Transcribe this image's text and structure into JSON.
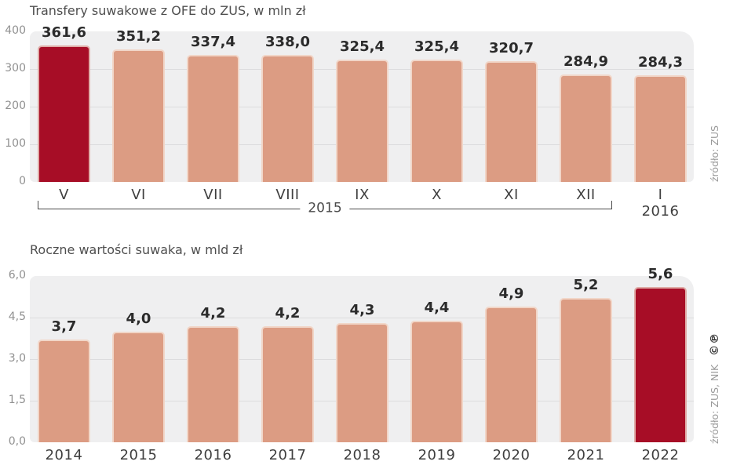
{
  "colors": {
    "accent_red": "#a70d26",
    "accent_border": "#dfaca7",
    "bar_fill": "#dc9c83",
    "bar_border": "#f1d6c8",
    "plot_background": "#efeff0",
    "gridline": "#dcdcde",
    "value_label": "#2b2b2b",
    "axis_tick": "#919191",
    "x_label": "#3f3f3f",
    "title": "#4f4f4f",
    "source": "#9a9a9a",
    "bracket": "#4a4a4a"
  },
  "chart_data": [
    {
      "type": "bar",
      "title": "Transfery suwakowe z OFE do ZUS, w mln zł",
      "categories": [
        "V",
        "VI",
        "VII",
        "VIII",
        "IX",
        "X",
        "XI",
        "XII",
        "I"
      ],
      "values": [
        361.6,
        351.2,
        337.4,
        338.0,
        325.4,
        325.4,
        320.7,
        284.9,
        284.3
      ],
      "value_labels": [
        "361,6",
        "351,2",
        "337,4",
        "338,0",
        "325,4",
        "325,4",
        "320,7",
        "284,9",
        "284,3"
      ],
      "highlight_index": 0,
      "ylim": [
        0,
        400
      ],
      "yticks": [
        "400",
        "300",
        "200",
        "100",
        "0"
      ],
      "ytick_values": [
        400,
        300,
        200,
        100,
        0
      ],
      "grid": true,
      "legend": null,
      "group_bracket": {
        "label": "2015",
        "from_index": 0,
        "to_index": 7
      },
      "secondary_x_label": {
        "index": 8,
        "label": "2016"
      },
      "source": "źródło: ZUS"
    },
    {
      "type": "bar",
      "title": "Roczne wartości suwaka, w mld zł",
      "categories": [
        "2014",
        "2015",
        "2016",
        "2017",
        "2018",
        "2019",
        "2020",
        "2021",
        "2022"
      ],
      "values": [
        3.7,
        4.0,
        4.2,
        4.2,
        4.3,
        4.4,
        4.9,
        5.2,
        5.6
      ],
      "value_labels": [
        "3,7",
        "4,0",
        "4,2",
        "4,2",
        "4,3",
        "4,4",
        "4,9",
        "5,2",
        "5,6"
      ],
      "highlight_index": 8,
      "ylim": [
        0,
        6
      ],
      "yticks": [
        "6,0",
        "4,5",
        "3,0",
        "1,5",
        "0,0"
      ],
      "ytick_values": [
        6,
        4.5,
        3,
        1.5,
        0
      ],
      "grid": true,
      "legend": null,
      "source": "źródło: ZUS, NIK",
      "source_mark": "©℗"
    }
  ]
}
